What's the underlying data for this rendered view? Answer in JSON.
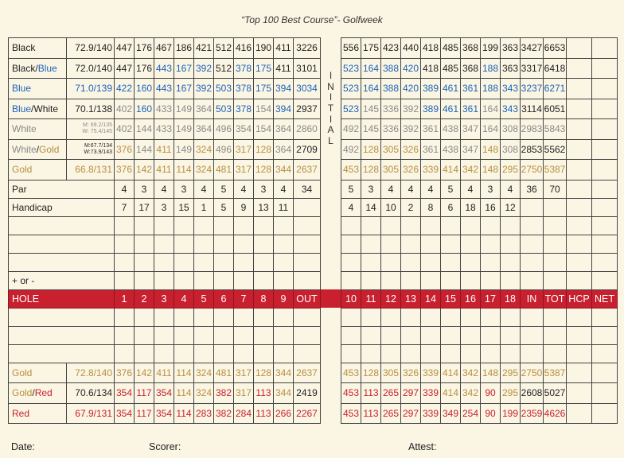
{
  "title": "“Top 100 Best Course”- Golfweek",
  "initial_letters": [
    "I",
    "N",
    "I",
    "T",
    "I",
    "A",
    "L"
  ],
  "colors": {
    "black": "#222222",
    "blue": "#1c63b8",
    "white": "#8a8a8a",
    "gold": "#b79040",
    "red": "#c8202f"
  },
  "top_tees": [
    {
      "name": [
        {
          "t": "Black",
          "c": "black"
        }
      ],
      "rating": [
        "72.9/140"
      ],
      "rc": "black",
      "front": [
        [
          "447",
          "black"
        ],
        [
          "176",
          "black"
        ],
        [
          "467",
          "black"
        ],
        [
          "186",
          "black"
        ],
        [
          "421",
          "black"
        ],
        [
          "512",
          "black"
        ],
        [
          "416",
          "black"
        ],
        [
          "190",
          "black"
        ],
        [
          "411",
          "black"
        ],
        [
          "3226",
          "black"
        ]
      ],
      "back": [
        [
          "556",
          "black"
        ],
        [
          "175",
          "black"
        ],
        [
          "423",
          "black"
        ],
        [
          "440",
          "black"
        ],
        [
          "418",
          "black"
        ],
        [
          "485",
          "black"
        ],
        [
          "368",
          "black"
        ],
        [
          "199",
          "black"
        ],
        [
          "363",
          "black"
        ],
        [
          "3427",
          "black"
        ],
        [
          "6653",
          "black"
        ]
      ]
    },
    {
      "name": [
        {
          "t": "Black",
          "c": "black"
        },
        {
          "t": "/",
          "c": "black"
        },
        {
          "t": "Blue",
          "c": "blue"
        }
      ],
      "rating": [
        "72.0/140"
      ],
      "rc": "black",
      "front": [
        [
          "447",
          "black"
        ],
        [
          "176",
          "black"
        ],
        [
          "443",
          "blue"
        ],
        [
          "167",
          "blue"
        ],
        [
          "392",
          "blue"
        ],
        [
          "512",
          "black"
        ],
        [
          "378",
          "blue"
        ],
        [
          "175",
          "blue"
        ],
        [
          "411",
          "black"
        ],
        [
          "3101",
          "black"
        ]
      ],
      "back": [
        [
          "523",
          "blue"
        ],
        [
          "164",
          "blue"
        ],
        [
          "388",
          "blue"
        ],
        [
          "420",
          "blue"
        ],
        [
          "418",
          "black"
        ],
        [
          "485",
          "black"
        ],
        [
          "368",
          "black"
        ],
        [
          "188",
          "blue"
        ],
        [
          "363",
          "black"
        ],
        [
          "3317",
          "black"
        ],
        [
          "6418",
          "black"
        ]
      ]
    },
    {
      "name": [
        {
          "t": "Blue",
          "c": "blue"
        }
      ],
      "rating": [
        "71.0/139"
      ],
      "rc": "blue",
      "front": [
        [
          "422",
          "blue"
        ],
        [
          "160",
          "blue"
        ],
        [
          "443",
          "blue"
        ],
        [
          "167",
          "blue"
        ],
        [
          "392",
          "blue"
        ],
        [
          "503",
          "blue"
        ],
        [
          "378",
          "blue"
        ],
        [
          "175",
          "blue"
        ],
        [
          "394",
          "blue"
        ],
        [
          "3034",
          "blue"
        ]
      ],
      "back": [
        [
          "523",
          "blue"
        ],
        [
          "164",
          "blue"
        ],
        [
          "388",
          "blue"
        ],
        [
          "420",
          "blue"
        ],
        [
          "389",
          "blue"
        ],
        [
          "461",
          "blue"
        ],
        [
          "361",
          "blue"
        ],
        [
          "188",
          "blue"
        ],
        [
          "343",
          "blue"
        ],
        [
          "3237",
          "blue"
        ],
        [
          "6271",
          "blue"
        ]
      ]
    },
    {
      "name": [
        {
          "t": "Blue",
          "c": "blue"
        },
        {
          "t": "/White",
          "c": "black"
        }
      ],
      "rating": [
        "70.1/138"
      ],
      "rc": "black",
      "front": [
        [
          "402",
          "white"
        ],
        [
          "160",
          "blue"
        ],
        [
          "433",
          "white"
        ],
        [
          "149",
          "white"
        ],
        [
          "364",
          "white"
        ],
        [
          "503",
          "blue"
        ],
        [
          "378",
          "blue"
        ],
        [
          "154",
          "white"
        ],
        [
          "394",
          "blue"
        ],
        [
          "2937",
          "black"
        ]
      ],
      "back": [
        [
          "523",
          "blue"
        ],
        [
          "145",
          "white"
        ],
        [
          "336",
          "white"
        ],
        [
          "392",
          "white"
        ],
        [
          "389",
          "blue"
        ],
        [
          "461",
          "blue"
        ],
        [
          "361",
          "blue"
        ],
        [
          "164",
          "white"
        ],
        [
          "343",
          "blue"
        ],
        [
          "3114",
          "black"
        ],
        [
          "6051",
          "black"
        ]
      ]
    },
    {
      "name": [
        {
          "t": "White",
          "c": "white"
        }
      ],
      "rating": [
        "M: 69.2/135",
        "W: 75.4/145"
      ],
      "rc": "white",
      "front": [
        [
          "402",
          "white"
        ],
        [
          "144",
          "white"
        ],
        [
          "433",
          "white"
        ],
        [
          "149",
          "white"
        ],
        [
          "364",
          "white"
        ],
        [
          "496",
          "white"
        ],
        [
          "354",
          "white"
        ],
        [
          "154",
          "white"
        ],
        [
          "364",
          "white"
        ],
        [
          "2860",
          "white"
        ]
      ],
      "back": [
        [
          "492",
          "white"
        ],
        [
          "145",
          "white"
        ],
        [
          "336",
          "white"
        ],
        [
          "392",
          "white"
        ],
        [
          "361",
          "white"
        ],
        [
          "438",
          "white"
        ],
        [
          "347",
          "white"
        ],
        [
          "164",
          "white"
        ],
        [
          "308",
          "white"
        ],
        [
          "2983",
          "white"
        ],
        [
          "5843",
          "white"
        ]
      ]
    },
    {
      "name": [
        {
          "t": "White",
          "c": "white"
        },
        {
          "t": "/",
          "c": "black"
        },
        {
          "t": "Gold",
          "c": "gold"
        }
      ],
      "rating": [
        "M:67.7/134",
        "W:73.9/143"
      ],
      "rc": "black",
      "front": [
        [
          "376",
          "gold"
        ],
        [
          "144",
          "white"
        ],
        [
          "411",
          "gold"
        ],
        [
          "149",
          "white"
        ],
        [
          "324",
          "gold"
        ],
        [
          "496",
          "white"
        ],
        [
          "317",
          "gold"
        ],
        [
          "128",
          "gold"
        ],
        [
          "364",
          "white"
        ],
        [
          "2709",
          "black"
        ]
      ],
      "back": [
        [
          "492",
          "white"
        ],
        [
          "128",
          "gold"
        ],
        [
          "305",
          "gold"
        ],
        [
          "326",
          "gold"
        ],
        [
          "361",
          "white"
        ],
        [
          "438",
          "white"
        ],
        [
          "347",
          "white"
        ],
        [
          "148",
          "gold"
        ],
        [
          "308",
          "white"
        ],
        [
          "2853",
          "black"
        ],
        [
          "5562",
          "black"
        ]
      ]
    },
    {
      "name": [
        {
          "t": "Gold",
          "c": "gold"
        }
      ],
      "rating": [
        "66.8/131"
      ],
      "rc": "gold",
      "front": [
        [
          "376",
          "gold"
        ],
        [
          "142",
          "gold"
        ],
        [
          "411",
          "gold"
        ],
        [
          "114",
          "gold"
        ],
        [
          "324",
          "gold"
        ],
        [
          "481",
          "gold"
        ],
        [
          "317",
          "gold"
        ],
        [
          "128",
          "gold"
        ],
        [
          "344",
          "gold"
        ],
        [
          "2637",
          "gold"
        ]
      ],
      "back": [
        [
          "453",
          "gold"
        ],
        [
          "128",
          "gold"
        ],
        [
          "305",
          "gold"
        ],
        [
          "326",
          "gold"
        ],
        [
          "339",
          "gold"
        ],
        [
          "414",
          "gold"
        ],
        [
          "342",
          "gold"
        ],
        [
          "148",
          "gold"
        ],
        [
          "295",
          "gold"
        ],
        [
          "2750",
          "gold"
        ],
        [
          "5387",
          "gold"
        ]
      ]
    }
  ],
  "par": {
    "label": "Par",
    "front": [
      "4",
      "3",
      "4",
      "3",
      "4",
      "5",
      "4",
      "3",
      "4",
      "34"
    ],
    "back": [
      "5",
      "3",
      "4",
      "4",
      "4",
      "5",
      "4",
      "3",
      "4",
      "36",
      "70"
    ]
  },
  "handicap": {
    "label": "Handicap",
    "front": [
      "7",
      "17",
      "3",
      "15",
      "1",
      "5",
      "9",
      "13",
      "11"
    ],
    "back": [
      "4",
      "14",
      "10",
      "2",
      "8",
      "6",
      "18",
      "16",
      "12"
    ]
  },
  "plus_minus_label": "+ or -",
  "hole_row": {
    "label": "HOLE",
    "front": [
      "1",
      "2",
      "3",
      "4",
      "5",
      "6",
      "7",
      "8",
      "9",
      "OUT"
    ],
    "back": [
      "10",
      "11",
      "12",
      "13",
      "14",
      "15",
      "16",
      "17",
      "18",
      "IN",
      "TOT",
      "HCP",
      "NET"
    ]
  },
  "bottom_tees": [
    {
      "name": [
        {
          "t": "Gold",
          "c": "gold"
        }
      ],
      "rating": [
        "72.8/140"
      ],
      "rc": "gold",
      "front": [
        [
          "376",
          "gold"
        ],
        [
          "142",
          "gold"
        ],
        [
          "411",
          "gold"
        ],
        [
          "114",
          "gold"
        ],
        [
          "324",
          "gold"
        ],
        [
          "481",
          "gold"
        ],
        [
          "317",
          "gold"
        ],
        [
          "128",
          "gold"
        ],
        [
          "344",
          "gold"
        ],
        [
          "2637",
          "gold"
        ]
      ],
      "back": [
        [
          "453",
          "gold"
        ],
        [
          "128",
          "gold"
        ],
        [
          "305",
          "gold"
        ],
        [
          "326",
          "gold"
        ],
        [
          "339",
          "gold"
        ],
        [
          "414",
          "gold"
        ],
        [
          "342",
          "gold"
        ],
        [
          "148",
          "gold"
        ],
        [
          "295",
          "gold"
        ],
        [
          "2750",
          "gold"
        ],
        [
          "5387",
          "gold"
        ]
      ]
    },
    {
      "name": [
        {
          "t": "Gold",
          "c": "gold"
        },
        {
          "t": "/",
          "c": "black"
        },
        {
          "t": "Red",
          "c": "red"
        }
      ],
      "rating": [
        "70.6/134"
      ],
      "rc": "black",
      "front": [
        [
          "354",
          "red"
        ],
        [
          "117",
          "red"
        ],
        [
          "354",
          "red"
        ],
        [
          "114",
          "gold"
        ],
        [
          "324",
          "gold"
        ],
        [
          "382",
          "red"
        ],
        [
          "317",
          "gold"
        ],
        [
          "113",
          "red"
        ],
        [
          "344",
          "gold"
        ],
        [
          "2419",
          "black"
        ]
      ],
      "back": [
        [
          "453",
          "red"
        ],
        [
          "113",
          "red"
        ],
        [
          "265",
          "red"
        ],
        [
          "297",
          "red"
        ],
        [
          "339",
          "red"
        ],
        [
          "414",
          "gold"
        ],
        [
          "342",
          "gold"
        ],
        [
          "90",
          "red"
        ],
        [
          "295",
          "gold"
        ],
        [
          "2608",
          "black"
        ],
        [
          "5027",
          "black"
        ]
      ]
    },
    {
      "name": [
        {
          "t": "Red",
          "c": "red"
        }
      ],
      "rating": [
        "67.9/131"
      ],
      "rc": "red",
      "front": [
        [
          "354",
          "red"
        ],
        [
          "117",
          "red"
        ],
        [
          "354",
          "red"
        ],
        [
          "114",
          "red"
        ],
        [
          "283",
          "red"
        ],
        [
          "382",
          "red"
        ],
        [
          "284",
          "red"
        ],
        [
          "113",
          "red"
        ],
        [
          "266",
          "red"
        ],
        [
          "2267",
          "red"
        ]
      ],
      "back": [
        [
          "453",
          "red"
        ],
        [
          "113",
          "red"
        ],
        [
          "265",
          "red"
        ],
        [
          "297",
          "red"
        ],
        [
          "339",
          "red"
        ],
        [
          "349",
          "red"
        ],
        [
          "254",
          "red"
        ],
        [
          "90",
          "red"
        ],
        [
          "199",
          "red"
        ],
        [
          "2359",
          "red"
        ],
        [
          "4626",
          "red"
        ]
      ]
    }
  ],
  "footer": {
    "date": "Date:",
    "scorer": "Scorer:",
    "attest": "Attest:"
  }
}
